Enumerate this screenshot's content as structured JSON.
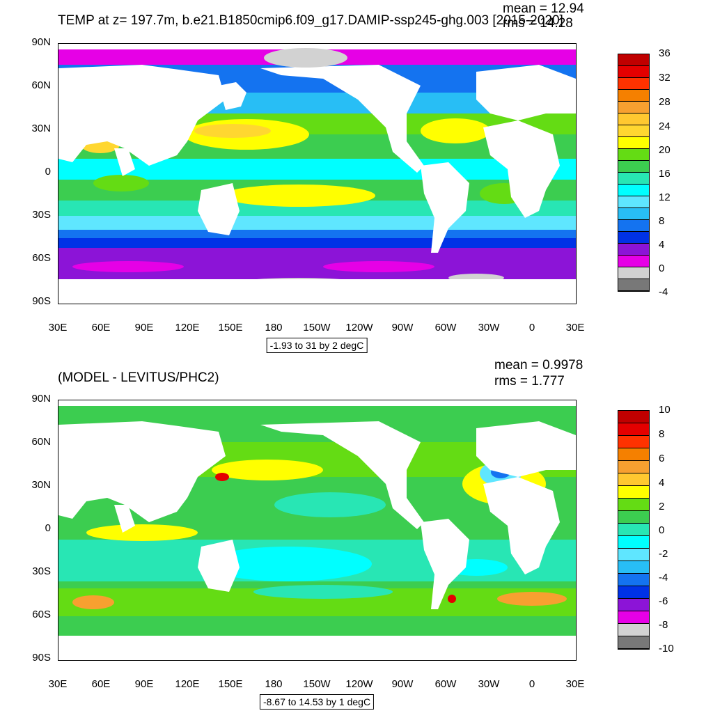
{
  "top": {
    "title": "TEMP at z= 197.7m, b.e21.B1850cmip6.f09_g17.DAMIP-ssp245-ghg.003 [2015-2020]",
    "mean": "mean = 12.94",
    "rms": "rms = 14.28",
    "contour_info": "-1.93 to 31 by 2 degC",
    "colorbar_labels": [
      "36",
      "32",
      "28",
      "24",
      "20",
      "16",
      "12",
      "8",
      "4",
      "0",
      "-4"
    ],
    "colors": [
      "#c00000",
      "#e40000",
      "#ff3200",
      "#f58000",
      "#f7a030",
      "#ffc830",
      "#ffd730",
      "#ffff00",
      "#64dc14",
      "#3ccd50",
      "#28e6b4",
      "#00ffff",
      "#5fe6ff",
      "#28bef5",
      "#1473f0",
      "#0032e6",
      "#8c14d7",
      "#e600e6",
      "#d2d2d2",
      "#787878"
    ]
  },
  "bottom": {
    "title": "(MODEL - LEVITUS/PHC2)",
    "mean": "mean = 0.9978",
    "rms": "rms = 1.777",
    "contour_info": "-8.67 to 14.53 by 1 degC",
    "colorbar_labels": [
      "10",
      "8",
      "6",
      "4",
      "2",
      "0",
      "-2",
      "-4",
      "-6",
      "-8",
      "-10"
    ],
    "colors": [
      "#c00000",
      "#e40000",
      "#ff3200",
      "#f58000",
      "#f7a030",
      "#ffc830",
      "#ffff00",
      "#64dc14",
      "#3ccd50",
      "#28e6b4",
      "#00ffff",
      "#5fe6ff",
      "#28bef5",
      "#1473f0",
      "#0032e6",
      "#8c14d7",
      "#e600e6",
      "#d2d2d2",
      "#787878"
    ]
  },
  "lat_labels": [
    "90N",
    "60N",
    "30N",
    "0",
    "30S",
    "60S",
    "90S"
  ],
  "lon_labels": [
    "30E",
    "60E",
    "90E",
    "120E",
    "150E",
    "180",
    "150W",
    "120W",
    "90W",
    "60W",
    "30W",
    "0",
    "30E"
  ]
}
